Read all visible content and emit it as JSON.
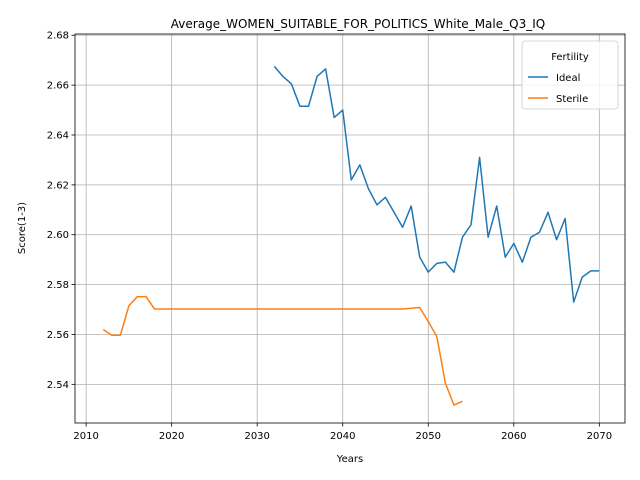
{
  "chart_data": {
    "type": "line",
    "title": "Average_WOMEN_SUITABLE_FOR_POLITICS_White_Male_Q3_IQ",
    "xlabel": "Years",
    "ylabel": "Score(1-3)",
    "xlim": [
      2008.7,
      2073
    ],
    "ylim": [
      2.5245,
      2.6805
    ],
    "xticks": [
      2010,
      2020,
      2030,
      2040,
      2050,
      2060,
      2070
    ],
    "yticks": [
      2.54,
      2.56,
      2.58,
      2.6,
      2.62,
      2.64,
      2.66,
      2.68
    ],
    "grid": true,
    "legend": {
      "title": "Fertility",
      "position": "top-right"
    },
    "series": [
      {
        "name": "Ideal",
        "color": "#1f77b4",
        "x": [
          2032,
          2033,
          2034,
          2035,
          2036,
          2037,
          2038,
          2039,
          2040,
          2041,
          2042,
          2043,
          2044,
          2045,
          2046,
          2047,
          2048,
          2049,
          2050,
          2051,
          2052,
          2053,
          2054,
          2055,
          2056,
          2057,
          2058,
          2059,
          2060,
          2061,
          2062,
          2063,
          2064,
          2065,
          2066,
          2067,
          2068,
          2069,
          2070
        ],
        "values": [
          2.6675,
          2.6635,
          2.6605,
          2.6515,
          2.6515,
          2.6635,
          2.6665,
          2.647,
          2.65,
          2.622,
          2.628,
          2.6185,
          2.612,
          2.615,
          2.609,
          2.603,
          2.6115,
          2.591,
          2.585,
          2.5885,
          2.589,
          2.585,
          2.599,
          2.604,
          2.631,
          2.599,
          2.6115,
          2.591,
          2.5965,
          2.589,
          2.599,
          2.601,
          2.609,
          2.598,
          2.6065,
          2.573,
          2.583,
          2.5855,
          2.5855
        ]
      },
      {
        "name": "Sterile",
        "color": "#ff7f0e",
        "x": [
          2012,
          2013,
          2014,
          2015,
          2016,
          2017,
          2018,
          2019,
          2020,
          2021,
          2022,
          2023,
          2024,
          2025,
          2026,
          2027,
          2028,
          2029,
          2030,
          2031,
          2032,
          2033,
          2034,
          2035,
          2036,
          2037,
          2038,
          2039,
          2040,
          2041,
          2042,
          2043,
          2044,
          2045,
          2046,
          2047,
          2048,
          2049,
          2050,
          2051,
          2052,
          2053,
          2054
        ],
        "values": [
          2.562,
          2.5597,
          2.5597,
          2.5715,
          2.5752,
          2.5752,
          2.5702,
          2.5702,
          2.5702,
          2.5702,
          2.5702,
          2.5702,
          2.5702,
          2.5702,
          2.5702,
          2.5702,
          2.5702,
          2.5702,
          2.5702,
          2.5702,
          2.5702,
          2.5702,
          2.5702,
          2.5702,
          2.5702,
          2.5702,
          2.5702,
          2.5702,
          2.5702,
          2.5702,
          2.5702,
          2.5702,
          2.5702,
          2.5702,
          2.5702,
          2.5702,
          2.5705,
          2.5708,
          2.5652,
          2.5592,
          2.5405,
          2.5317,
          2.5332
        ]
      }
    ]
  }
}
